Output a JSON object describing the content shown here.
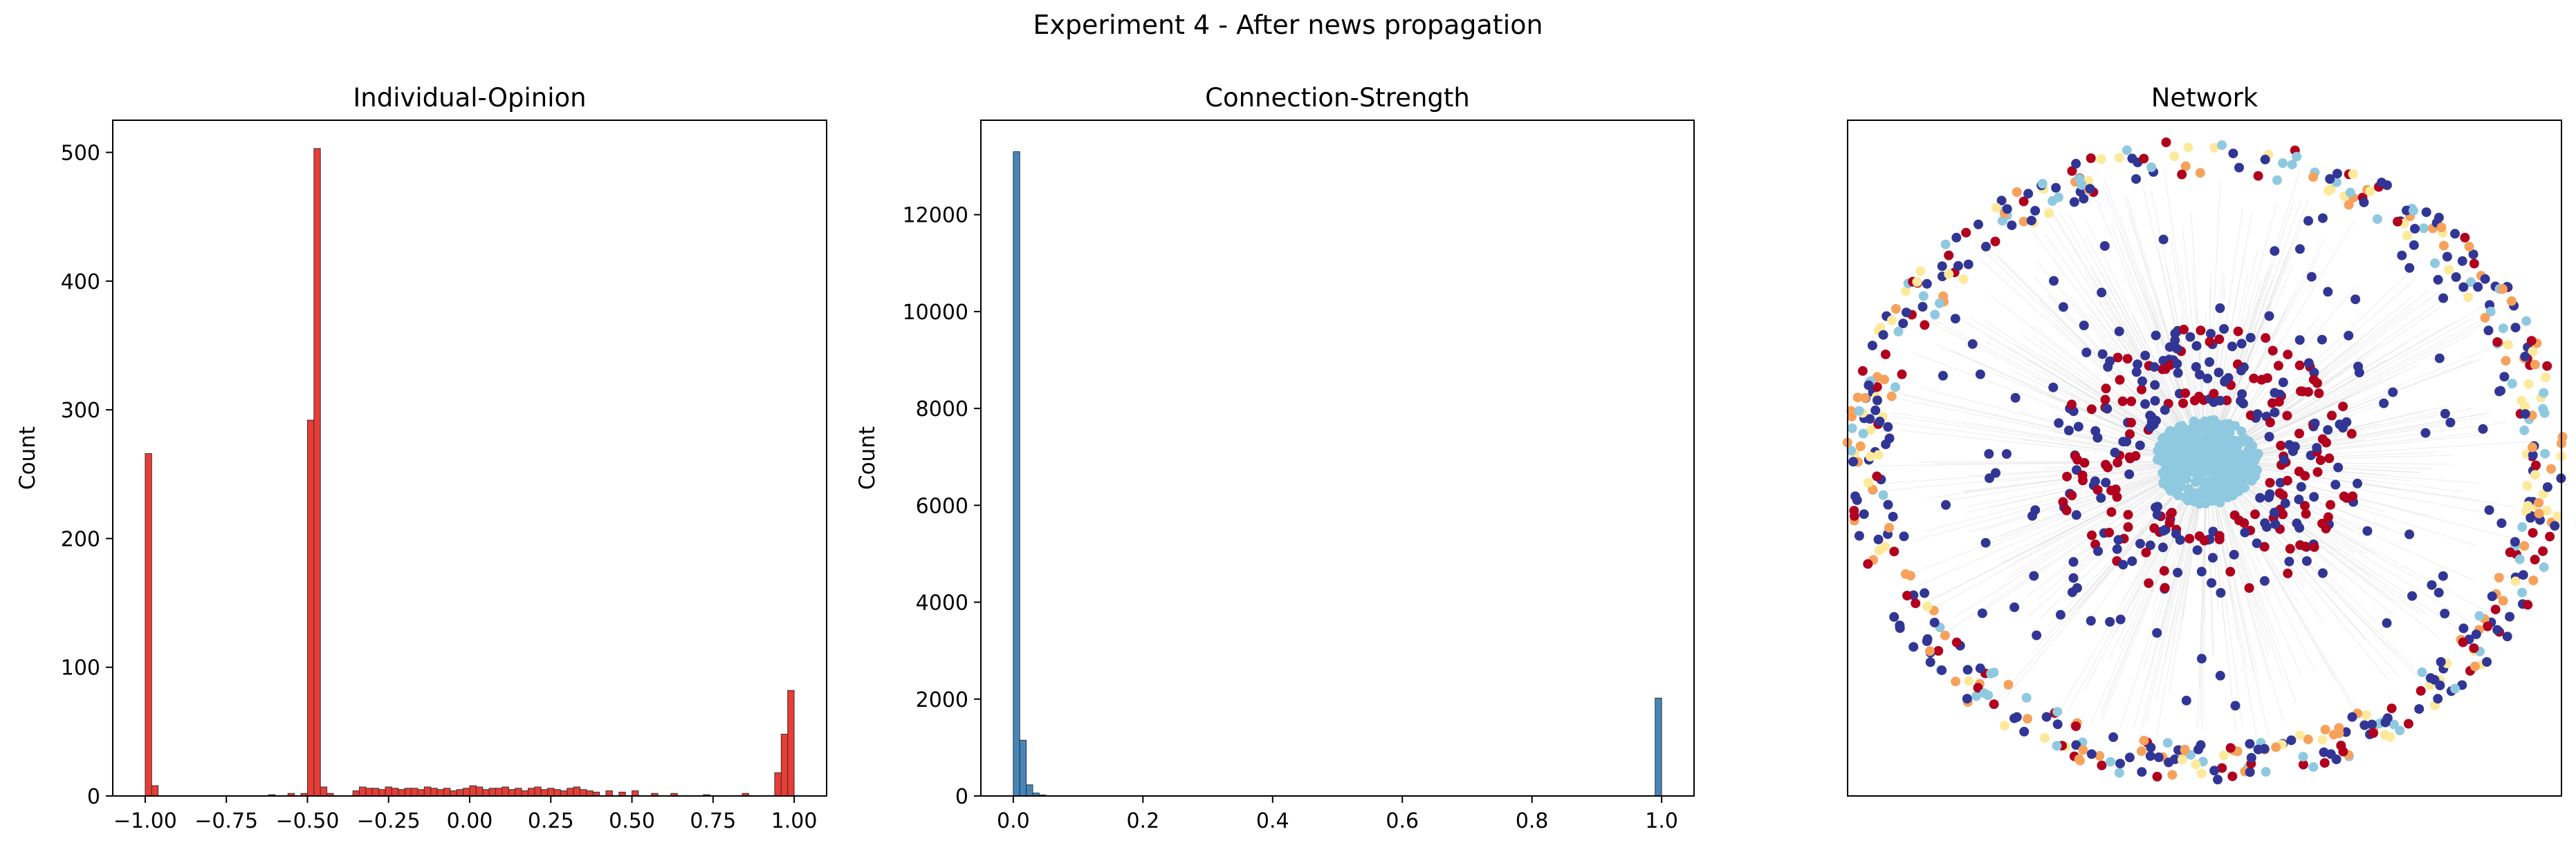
{
  "figure": {
    "title": "Experiment 4 - After news propagation"
  },
  "colors": {
    "hist_red": "#e8312a",
    "hist_blue": "#3a7fb5",
    "node_red": "#b0001e",
    "node_navy": "#313695",
    "node_lightblue": "#8fc9e0",
    "node_orange": "#f7a15b",
    "node_yellow": "#fde99a",
    "edge_gray": "#d9d9d9"
  },
  "chart_data": [
    {
      "type": "bar",
      "title": "Individual-Opinion",
      "xlabel": "",
      "ylabel": "Count",
      "xlim": [
        -1.1,
        1.1
      ],
      "ylim": [
        0,
        525
      ],
      "xticks": [
        -1.0,
        -0.75,
        -0.5,
        -0.25,
        0.0,
        0.25,
        0.5,
        0.75,
        1.0
      ],
      "xtick_labels": [
        "−1.00",
        "−0.75",
        "−0.50",
        "−0.25",
        "0.00",
        "0.25",
        "0.50",
        "0.75",
        "1.00"
      ],
      "yticks": [
        0,
        100,
        200,
        300,
        400,
        500
      ],
      "ytick_labels": [
        "0",
        "100",
        "200",
        "300",
        "400",
        "500"
      ],
      "bin_width": 0.02,
      "bin_starts": [
        -1.0,
        -0.98,
        -0.62,
        -0.56,
        -0.52,
        -0.5,
        -0.48,
        -0.46,
        -0.44,
        -0.36,
        -0.34,
        -0.32,
        -0.3,
        -0.28,
        -0.26,
        -0.24,
        -0.22,
        -0.2,
        -0.18,
        -0.16,
        -0.14,
        -0.12,
        -0.1,
        -0.08,
        -0.06,
        -0.04,
        -0.02,
        0.0,
        0.02,
        0.04,
        0.06,
        0.08,
        0.1,
        0.12,
        0.14,
        0.16,
        0.18,
        0.2,
        0.22,
        0.24,
        0.26,
        0.28,
        0.3,
        0.32,
        0.34,
        0.36,
        0.38,
        0.42,
        0.46,
        0.5,
        0.56,
        0.62,
        0.72,
        0.84,
        0.94,
        0.96,
        0.98
      ],
      "values": [
        266,
        8,
        1,
        2,
        2,
        292,
        503,
        7,
        2,
        4,
        7,
        6,
        6,
        5,
        7,
        6,
        5,
        6,
        6,
        5,
        7,
        6,
        5,
        6,
        4,
        5,
        6,
        8,
        7,
        5,
        6,
        6,
        7,
        5,
        6,
        4,
        6,
        7,
        5,
        6,
        5,
        4,
        6,
        7,
        5,
        4,
        3,
        4,
        3,
        4,
        2,
        2,
        1,
        2,
        18,
        48,
        82
      ]
    },
    {
      "type": "bar",
      "title": "Connection-Strength",
      "xlabel": "",
      "ylabel": "Count",
      "xlim": [
        -0.05,
        1.05
      ],
      "ylim": [
        0,
        13950
      ],
      "xticks": [
        0.0,
        0.2,
        0.4,
        0.6,
        0.8,
        1.0
      ],
      "xtick_labels": [
        "0.0",
        "0.2",
        "0.4",
        "0.6",
        "0.8",
        "1.0"
      ],
      "yticks": [
        0,
        2000,
        4000,
        6000,
        8000,
        10000,
        12000
      ],
      "ytick_labels": [
        "0",
        "2000",
        "4000",
        "6000",
        "8000",
        "10000",
        "12000"
      ],
      "bin_width": 0.01,
      "bin_starts": [
        0.0,
        0.01,
        0.02,
        0.03,
        0.04,
        0.99
      ],
      "values": [
        13300,
        1150,
        230,
        60,
        20,
        2020
      ]
    },
    {
      "type": "scatter",
      "title": "Network",
      "xlabel": "",
      "ylabel": "",
      "grid": false,
      "ticks": false
    }
  ]
}
